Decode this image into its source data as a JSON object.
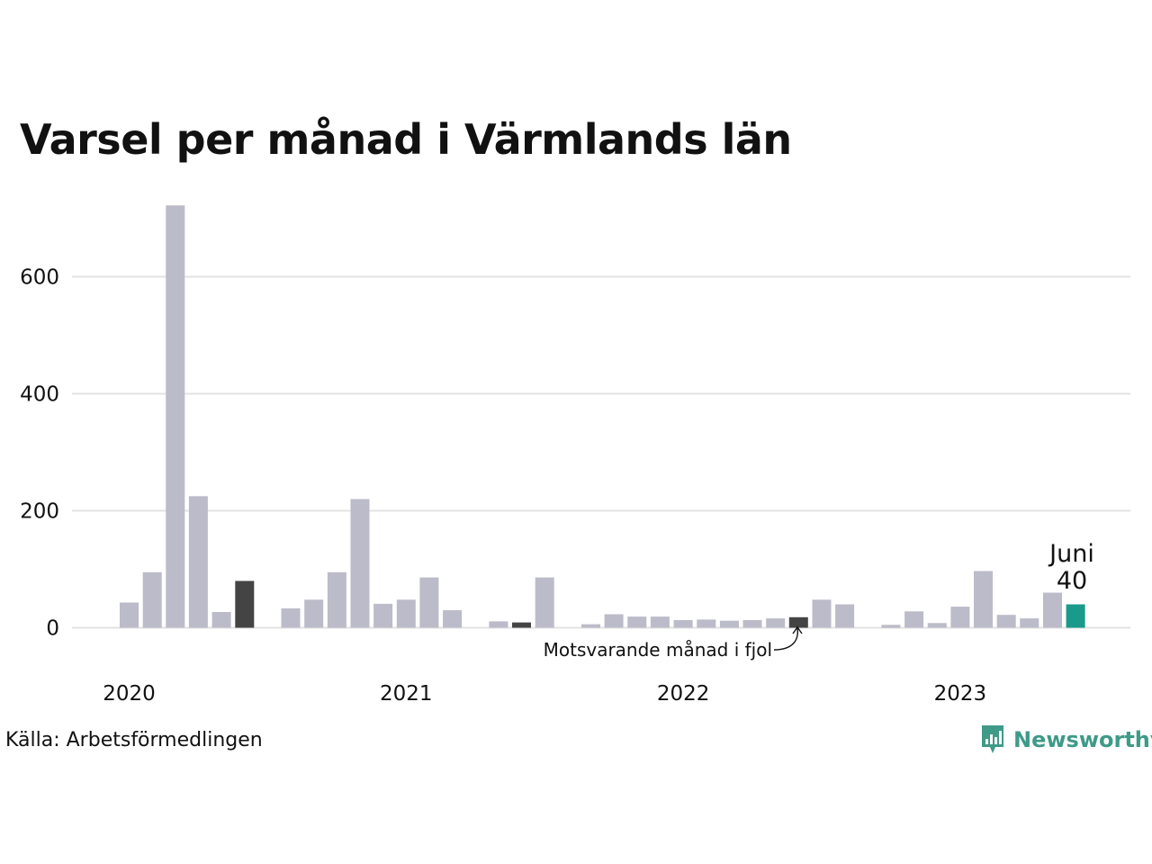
{
  "chart_data": {
    "type": "bar",
    "title": "Varsel per månad i Värmlands län",
    "source": "Källa: Arbetsförmedlingen",
    "brand": "Newsworthy",
    "ylim": [
      0,
      730
    ],
    "y_ticks": [
      0,
      200,
      400,
      600
    ],
    "grid": true,
    "year_labels": [
      "2020",
      "2021",
      "2022",
      "2023"
    ],
    "categories": [
      "2020-01",
      "2020-02",
      "2020-03",
      "2020-04",
      "2020-05",
      "2020-06",
      "2020-07",
      "2020-08",
      "2020-09",
      "2020-10",
      "2020-11",
      "2020-12",
      "2021-01",
      "2021-02",
      "2021-03",
      "2021-04",
      "2021-05",
      "2021-06",
      "2021-07",
      "2021-08",
      "2021-09",
      "2021-10",
      "2021-11",
      "2021-12",
      "2022-01",
      "2022-02",
      "2022-03",
      "2022-04",
      "2022-05",
      "2022-06",
      "2022-07",
      "2022-08",
      "2022-09",
      "2022-10",
      "2022-11",
      "2022-12",
      "2023-01",
      "2023-02",
      "2023-03",
      "2023-04",
      "2023-05",
      "2023-06"
    ],
    "values": [
      43,
      95,
      722,
      225,
      27,
      80,
      0,
      33,
      48,
      95,
      220,
      41,
      48,
      86,
      30,
      0,
      11,
      9,
      86,
      0,
      6,
      23,
      19,
      19,
      13,
      14,
      12,
      13,
      16,
      18,
      48,
      40,
      0,
      5,
      28,
      8,
      36,
      97,
      22,
      16,
      60,
      40
    ],
    "highlight": {
      "month_label": "Juni",
      "value": "40"
    },
    "annotation": "Motsvarande månad i fjol",
    "colors": {
      "bar": "#bcbbc9",
      "previous_year": "#444444",
      "current": "#1a9a8a",
      "grid": "#e3e3e3",
      "logo": "#3f9a88"
    }
  }
}
